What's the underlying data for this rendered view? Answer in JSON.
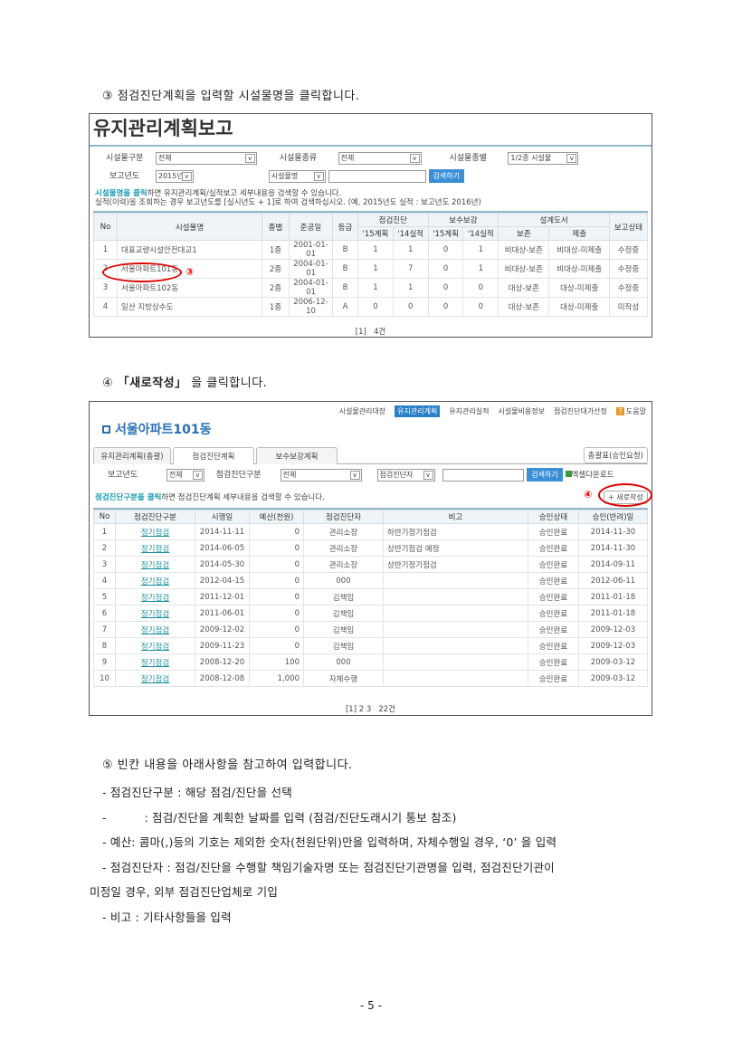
{
  "step3": "③ 점검진단계획을 입력할 시설물명을 클릭합니다.",
  "shot1": {
    "title": "유지관리계획보고",
    "filters": {
      "gubun_label": "시설물구분",
      "gubun_value": "전체",
      "jongryu_label": "시설물종류",
      "jongryu_value": "전체",
      "jongbyeol_label": "시설물종별",
      "jongbyeol_value": "1/2종 시설물",
      "year_label": "보고년도",
      "year_value": "2015년",
      "field_value": "시설물명",
      "search_value": "",
      "search_button": "검색하기"
    },
    "notice_hl": "시설물명을 클릭",
    "notice_rest": "하면 유지관리계획/실적보고 세부내용을 검색할 수 있습니다.",
    "notice2": "실적(이력)을 조회하는 경우 보고년도를 [실시년도 + 1]로 하여 검색하십시오. (예, 2015년도 실적 : 보고년도 2016년)",
    "headers": {
      "no": "No",
      "name": "시설물명",
      "type": "종별",
      "date": "준공일",
      "grade": "등급",
      "insp": "점검진단",
      "repair": "보수보강",
      "design": "설계도서",
      "status": "보고상태",
      "p15": "'15계획",
      "a14": "'14실적",
      "p15b": "'15계획",
      "a14b": "'14실적",
      "keep": "보존",
      "submit": "제출"
    },
    "rows": [
      [
        "1",
        "대표교량시설안전대교1",
        "1종",
        "2001-01-01",
        "B",
        "1",
        "1",
        "0",
        "1",
        "비대상-보존",
        "비대상-미제출",
        "수정중"
      ],
      [
        "2",
        "서울아파트101동",
        "2종",
        "2004-01-01",
        "B",
        "1",
        "7",
        "0",
        "1",
        "비대상-보존",
        "비대상-미제출",
        "수정중"
      ],
      [
        "3",
        "서울아파트102동",
        "2종",
        "2004-01-01",
        "B",
        "1",
        "1",
        "0",
        "0",
        "대상-보존",
        "대상-미제출",
        "수정중"
      ],
      [
        "4",
        "일산 지방상수도",
        "1종",
        "2006-12-10",
        "A",
        "0",
        "0",
        "0",
        "0",
        "대상-보존",
        "대상-미제출",
        "미작성"
      ]
    ],
    "marker": "③",
    "pager": "[1]",
    "count": "4건"
  },
  "step4_prefix": "④",
  "step4_bold": "「새로작성」",
  "step4_rest": "을 클릭합니다.",
  "shot2": {
    "nav": [
      "시설물관리대장",
      "유지관리계획",
      "유지관리실적",
      "시설물비용정보",
      "점검진단대가산정"
    ],
    "help": "도움말",
    "facility": "서울아파트101동",
    "tabs": [
      "유지관리계획(총괄)",
      "점검진단계획",
      "보수보강계획"
    ],
    "summary_button": "총괄표(승인요청)",
    "filters": {
      "year_label": "보고년도",
      "year_value": "전체",
      "gubun_label": "점검진단구분",
      "gubun_value": "전체",
      "field_value": "점검진단자",
      "search_value": "",
      "search_button": "검색하기",
      "excel": "엑셀다운로드"
    },
    "notice_hl": "점검진단구분을 클릭",
    "notice_rest": "하면 점검진단계획 세부내용을 검색할 수 있습니다.",
    "marker": "④",
    "new_button": "+ 새로작성",
    "headers": [
      "No",
      "점검진단구분",
      "시행일",
      "예산(천원)",
      "점검진단자",
      "비고",
      "승인상태",
      "승인(반려)일"
    ],
    "rows": [
      [
        "1",
        "정기점검",
        "2014-11-11",
        "0",
        "관리소장",
        "하반기정기점검",
        "승인완료",
        "2014-11-30"
      ],
      [
        "2",
        "정기점검",
        "2014-06-05",
        "0",
        "관리소장",
        "상반기점검 예정",
        "승인완료",
        "2014-11-30"
      ],
      [
        "3",
        "정기점검",
        "2014-05-30",
        "0",
        "관리소장",
        "상반기정기점검",
        "승인완료",
        "2014-09-11"
      ],
      [
        "4",
        "정기점검",
        "2012-04-15",
        "0",
        "000",
        "",
        "승인완료",
        "2012-06-11"
      ],
      [
        "5",
        "정기점검",
        "2011-12-01",
        "0",
        "김책임",
        "",
        "승인완료",
        "2011-01-18"
      ],
      [
        "6",
        "정기점검",
        "2011-06-01",
        "0",
        "김책임",
        "",
        "승인완료",
        "2011-01-18"
      ],
      [
        "7",
        "정기점검",
        "2009-12-02",
        "0",
        "김책임",
        "",
        "승인완료",
        "2009-12-03"
      ],
      [
        "8",
        "정기점검",
        "2009-11-23",
        "0",
        "김책임",
        "",
        "승인완료",
        "2009-12-03"
      ],
      [
        "9",
        "정기점검",
        "2008-12-20",
        "100",
        "000",
        "",
        "승인완료",
        "2009-03-12"
      ],
      [
        "10",
        "정기점검",
        "2008-12-08",
        "1,000",
        "자체수행",
        "",
        "승인완료",
        "2009-03-12"
      ]
    ],
    "pager": "[1] 2 3",
    "count": "22건"
  },
  "step5": {
    "title": "⑤ 빈칸 내용을 아래사항을 참고하여 입력합니다.",
    "lines": [
      "- 점검진단구분 : 해당 점검/진단을 선택",
      "-          : 점검/진단을 계획한 날짜를 입력 (점검/진단도래시기 통보 참조)",
      "- 예산: 콤마(,)등의 기호는 제외한 숫자(천원단위)만을 입력하며, 자체수행일 경우, ‘0’ 을 입력",
      "- 점검진단자 : 점검/진단을 수행할 책임기술자명 또는 점검진단기관명을 입력, 점검진단기관이",
      "미정일 경우, 외부 점검진단업체로 기입",
      "- 비고 : 기타사항들을 입력"
    ]
  },
  "page_number": "- 5 -"
}
